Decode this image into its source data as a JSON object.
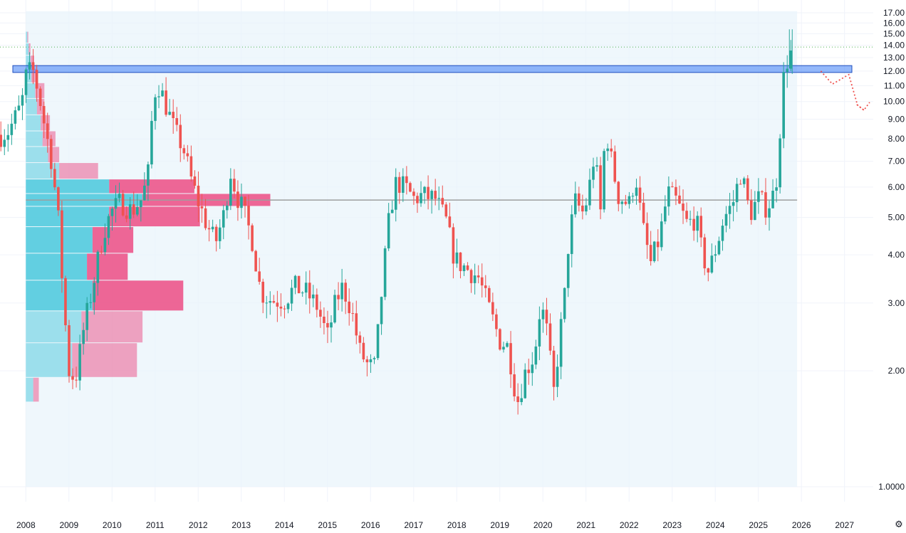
{
  "chart_data": {
    "type": "candlestick",
    "timeframe": "monthly",
    "y_axis": {
      "min": 1.0,
      "max": 17.0,
      "scale": "log",
      "ticks": [
        "1.0000",
        "2.00",
        "3.00",
        "4.00",
        "5.00",
        "6.00",
        "7.00",
        "8.00",
        "9.00",
        "10.00",
        "11.00",
        "12.00",
        "13.00",
        "14.00",
        "15.00",
        "16.00",
        "17.00"
      ],
      "tick_values": [
        1,
        2,
        3,
        4,
        5,
        6,
        7,
        8,
        9,
        10,
        11,
        12,
        13,
        14,
        15,
        16,
        17
      ]
    },
    "x_axis": {
      "ticks": [
        "2008",
        "2009",
        "2010",
        "2011",
        "2012",
        "2013",
        "2014",
        "2015",
        "2016",
        "2017",
        "2018",
        "2019",
        "2020",
        "2021",
        "2022",
        "2023",
        "2024",
        "2025",
        "2026",
        "2027"
      ],
      "tick_years": [
        2008,
        2009,
        2010,
        2011,
        2012,
        2013,
        2014,
        2015,
        2016,
        2017,
        2018,
        2019,
        2020,
        2021,
        2022,
        2023,
        2024,
        2025,
        2026,
        2027
      ],
      "range_years": [
        2007.4,
        2027.65
      ]
    },
    "grid": true,
    "colors": {
      "up": "#26a69a",
      "down": "#ef5350",
      "zone": "#3d7ef5",
      "vp_up": "#49c8dc",
      "vp_down": "#ec4c84",
      "range_bg": "#e8f4fb",
      "poc_line": "#9e9e9e",
      "dotted_level": "#4caf50",
      "projection": "#ef5350"
    },
    "resistance_zone": {
      "low": 11.9,
      "high": 12.4
    },
    "dotted_level": 13.85,
    "poc_price": 5.55,
    "volume_profile_range": {
      "start": 2008.0,
      "end": 2025.9,
      "low": 1.0,
      "high": 15.5
    },
    "volume_profile": [
      {
        "price": 1.72,
        "up": 0.4,
        "down": 0.3
      },
      {
        "price": 2.15,
        "up": 2.5,
        "down": 3.5
      },
      {
        "price": 2.6,
        "up": 3.0,
        "down": 3.3
      },
      {
        "price": 3.15,
        "up": 3.6,
        "down": 4.9
      },
      {
        "price": 3.75,
        "up": 3.3,
        "down": 2.2
      },
      {
        "price": 4.35,
        "up": 3.6,
        "down": 2.2
      },
      {
        "price": 5.15,
        "up": 4.5,
        "down": 4.9
      },
      {
        "price": 5.55,
        "up": 6.3,
        "down": 6.9
      },
      {
        "price": 6.0,
        "up": 4.5,
        "down": 4.6
      },
      {
        "price": 6.6,
        "up": 1.8,
        "down": 2.1
      },
      {
        "price": 7.3,
        "up": 1.2,
        "down": 0.6
      },
      {
        "price": 8.0,
        "up": 0.9,
        "down": 0.7
      },
      {
        "price": 8.8,
        "up": 0.8,
        "down": 0.5
      },
      {
        "price": 9.7,
        "up": 0.6,
        "down": 0.4
      },
      {
        "price": 10.7,
        "up": 0.5,
        "down": 0.5
      },
      {
        "price": 11.7,
        "up": 0.3,
        "down": 0.25
      },
      {
        "price": 12.7,
        "up": 0.25,
        "down": 0.2
      },
      {
        "price": 13.7,
        "up": 0.15,
        "down": 0.1
      },
      {
        "price": 14.7,
        "up": 0.08,
        "down": 0.05
      }
    ],
    "projection": [
      {
        "t": 2026.45,
        "p": 12.0
      },
      {
        "t": 2026.72,
        "p": 11.1
      },
      {
        "t": 2027.1,
        "p": 11.75
      },
      {
        "t": 2027.3,
        "p": 9.8
      },
      {
        "t": 2027.45,
        "p": 9.5
      }
    ],
    "close_anchors": [
      [
        2007.42,
        8.2
      ],
      [
        2007.6,
        8.4
      ],
      [
        2007.9,
        9.8
      ],
      [
        2008.0,
        11.6
      ],
      [
        2008.15,
        12.2
      ],
      [
        2008.3,
        10.5
      ],
      [
        2008.45,
        8.5
      ],
      [
        2008.6,
        7.0
      ],
      [
        2008.75,
        5.0
      ],
      [
        2008.88,
        3.0
      ],
      [
        2009.0,
        2.0
      ],
      [
        2009.15,
        1.9
      ],
      [
        2009.35,
        2.6
      ],
      [
        2009.55,
        3.3
      ],
      [
        2009.8,
        4.6
      ],
      [
        2010.0,
        5.2
      ],
      [
        2010.2,
        5.5
      ],
      [
        2010.45,
        5.2
      ],
      [
        2010.7,
        5.6
      ],
      [
        2010.85,
        6.6
      ],
      [
        2010.95,
        10.0
      ],
      [
        2011.05,
        11.3
      ],
      [
        2011.25,
        9.8
      ],
      [
        2011.45,
        8.4
      ],
      [
        2011.65,
        7.6
      ],
      [
        2011.85,
        6.2
      ],
      [
        2012.0,
        5.5
      ],
      [
        2012.2,
        4.8
      ],
      [
        2012.4,
        4.3
      ],
      [
        2012.6,
        5.1
      ],
      [
        2012.75,
        6.6
      ],
      [
        2012.9,
        5.7
      ],
      [
        2013.05,
        5.2
      ],
      [
        2013.25,
        4.4
      ],
      [
        2013.45,
        3.2
      ],
      [
        2013.7,
        3.05
      ],
      [
        2014.0,
        3.05
      ],
      [
        2014.25,
        3.3
      ],
      [
        2014.5,
        3.2
      ],
      [
        2014.75,
        2.95
      ],
      [
        2015.0,
        2.45
      ],
      [
        2015.2,
        3.05
      ],
      [
        2015.35,
        3.3
      ],
      [
        2015.55,
        2.9
      ],
      [
        2015.75,
        2.25
      ],
      [
        2015.95,
        2.05
      ],
      [
        2016.1,
        2.05
      ],
      [
        2016.3,
        3.6
      ],
      [
        2016.45,
        5.2
      ],
      [
        2016.6,
        6.2
      ],
      [
        2016.85,
        5.9
      ],
      [
        2017.0,
        5.6
      ],
      [
        2017.2,
        5.7
      ],
      [
        2017.5,
        5.6
      ],
      [
        2017.75,
        4.9
      ],
      [
        2017.95,
        3.9
      ],
      [
        2018.2,
        3.7
      ],
      [
        2018.5,
        3.5
      ],
      [
        2018.75,
        2.9
      ],
      [
        2019.0,
        2.4
      ],
      [
        2019.2,
        2.3
      ],
      [
        2019.4,
        1.65
      ],
      [
        2019.6,
        2.0
      ],
      [
        2019.8,
        2.2
      ],
      [
        2019.95,
        3.0
      ],
      [
        2020.1,
        2.5
      ],
      [
        2020.25,
        1.75
      ],
      [
        2020.4,
        2.5
      ],
      [
        2020.5,
        3.1
      ],
      [
        2020.6,
        4.4
      ],
      [
        2020.75,
        5.5
      ],
      [
        2020.95,
        5.1
      ],
      [
        2021.1,
        6.2
      ],
      [
        2021.2,
        7.4
      ],
      [
        2021.35,
        5.0
      ],
      [
        2021.45,
        8.7
      ],
      [
        2021.55,
        7.4
      ],
      [
        2021.75,
        5.7
      ],
      [
        2022.0,
        5.4
      ],
      [
        2022.15,
        6.5
      ],
      [
        2022.3,
        4.8
      ],
      [
        2022.5,
        3.8
      ],
      [
        2022.7,
        4.4
      ],
      [
        2022.9,
        5.8
      ],
      [
        2023.1,
        5.5
      ],
      [
        2023.35,
        4.8
      ],
      [
        2023.55,
        5.0
      ],
      [
        2023.7,
        4.0
      ],
      [
        2023.85,
        3.6
      ],
      [
        2024.05,
        4.3
      ],
      [
        2024.2,
        5.0
      ],
      [
        2024.4,
        5.4
      ],
      [
        2024.6,
        6.6
      ],
      [
        2024.8,
        5.1
      ],
      [
        2025.0,
        5.6
      ],
      [
        2025.2,
        5.3
      ],
      [
        2025.4,
        5.9
      ],
      [
        2025.5,
        8.4
      ],
      [
        2025.57,
        11.2
      ],
      [
        2025.65,
        12.7
      ],
      [
        2025.72,
        13.0
      ],
      [
        2025.8,
        13.85
      ]
    ]
  },
  "ui": {
    "settings_icon": "gear-icon"
  }
}
